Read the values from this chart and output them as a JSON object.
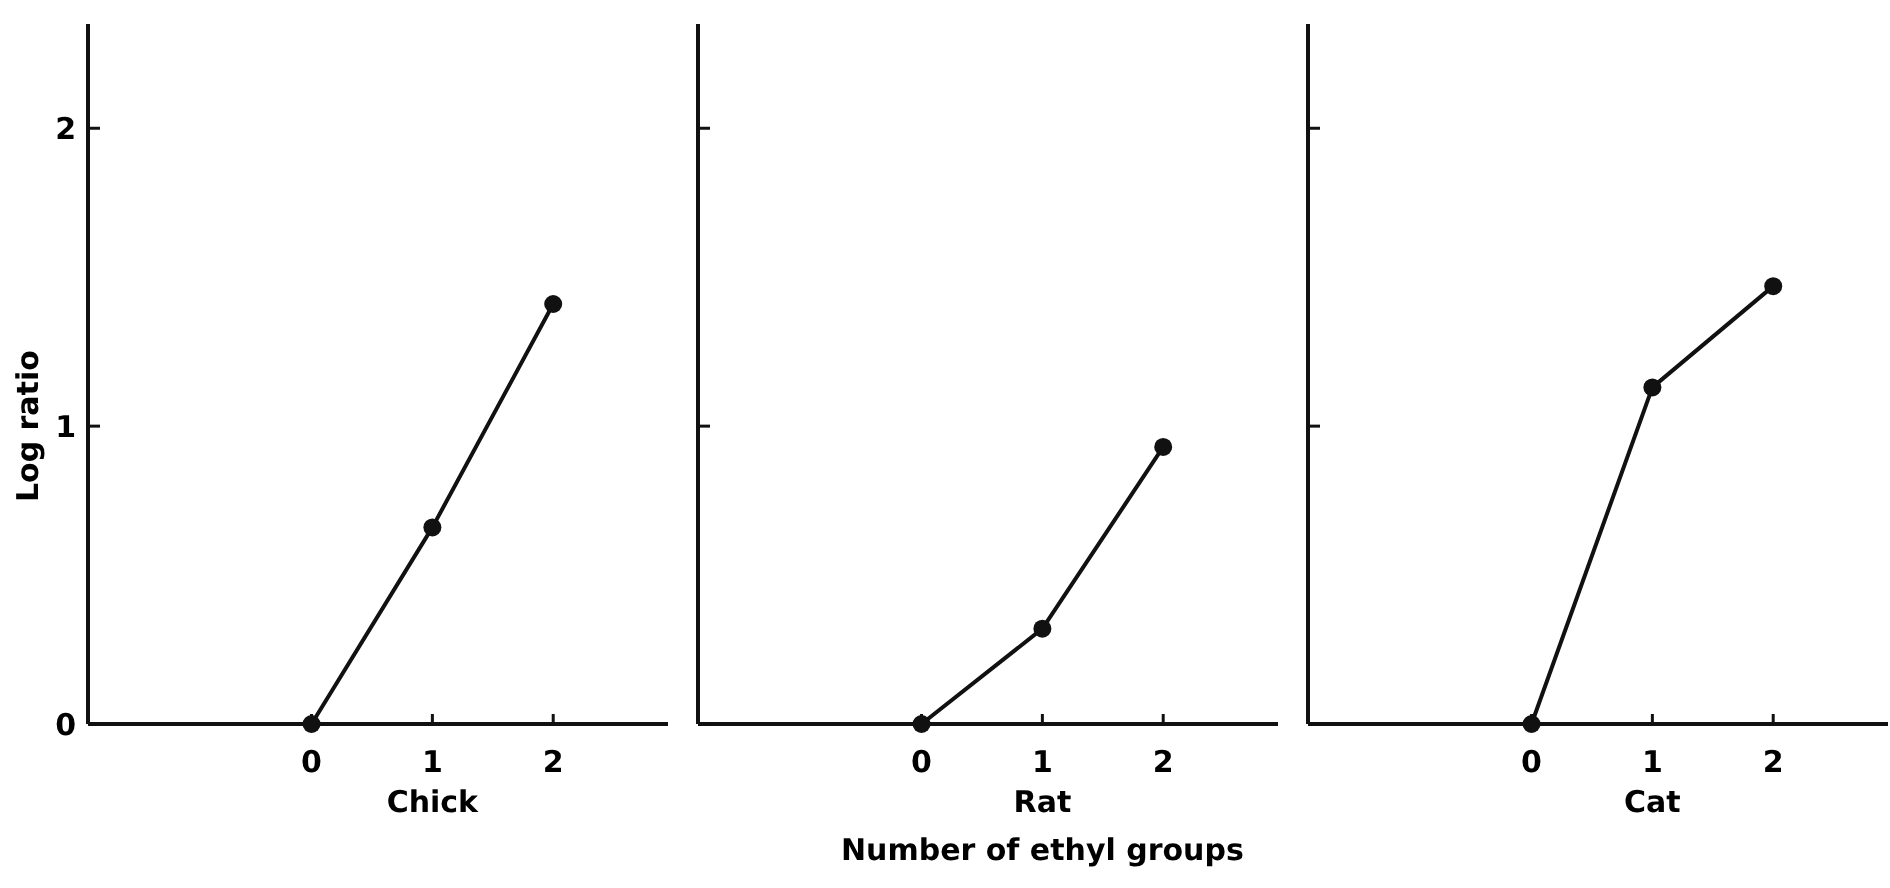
{
  "chart_data": [
    {
      "type": "line",
      "title": "Chick",
      "ylabel": "Log ratio",
      "x": [
        0,
        1,
        2
      ],
      "series": [
        {
          "color": "#111111",
          "values": [
            0,
            0.66,
            1.41
          ]
        }
      ],
      "xlim": [
        -1.85,
        2.95
      ],
      "xticks": [
        0,
        1,
        2
      ],
      "ylim": [
        0,
        2.35
      ],
      "yticks": [
        0,
        1,
        2
      ],
      "marker": "circle",
      "line_style": "solid",
      "grid": false
    },
    {
      "type": "line",
      "title": "Rat",
      "xlabel": "Number of ethyl groups",
      "x": [
        0,
        1,
        2
      ],
      "series": [
        {
          "color": "#111111",
          "values": [
            0,
            0.32,
            0.93
          ]
        }
      ],
      "xlim": [
        -1.85,
        2.95
      ],
      "xticks": [
        0,
        1,
        2
      ],
      "ylim": [
        0,
        2.35
      ],
      "yticks": [
        {
          "value": 0,
          "label": null
        },
        {
          "value": 1,
          "label": null
        },
        {
          "value": 2,
          "label": null
        }
      ],
      "tick_labels": "x",
      "marker": "circle",
      "line_style": "solid",
      "grid": false
    },
    {
      "type": "line",
      "title": "Cat",
      "x": [
        0,
        1,
        2
      ],
      "series": [
        {
          "color": "#111111",
          "values": [
            0,
            1.13,
            1.47
          ]
        }
      ],
      "xlim": [
        -1.85,
        2.95
      ],
      "xticks": [
        0,
        1,
        2
      ],
      "ylim": [
        0,
        2.35
      ],
      "yticks": [
        {
          "value": 0,
          "label": null
        },
        {
          "value": 1,
          "label": null
        },
        {
          "value": 2,
          "label": null
        }
      ],
      "tick_labels": "x",
      "marker": "circle",
      "line_style": "solid",
      "grid": false
    }
  ]
}
